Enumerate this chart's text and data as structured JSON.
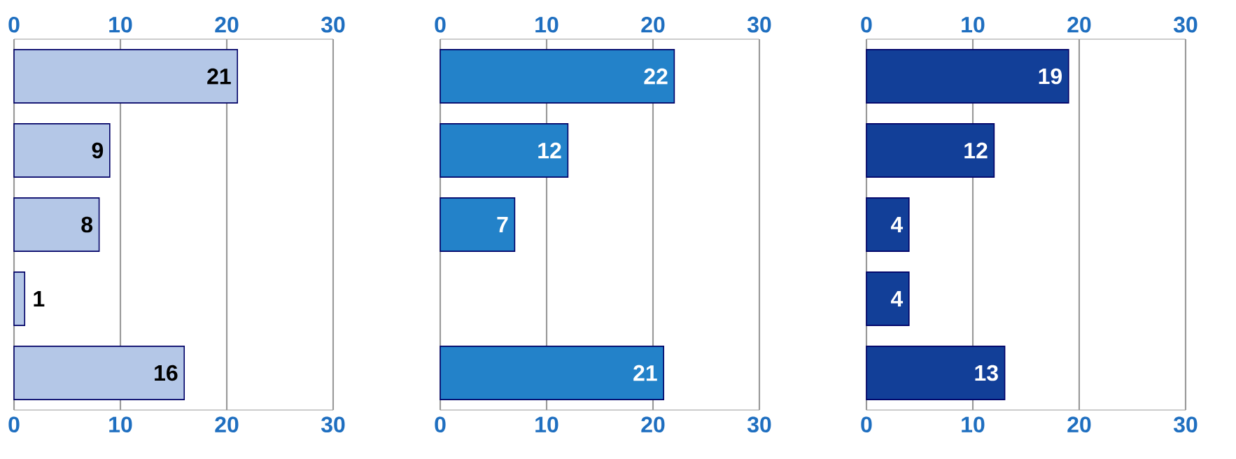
{
  "chart_data": [
    {
      "type": "bar",
      "orientation": "horizontal",
      "categories": [
        null,
        null,
        null,
        null,
        null
      ],
      "values": [
        21,
        9,
        8,
        1,
        16
      ],
      "color": "#b4c7e7",
      "xlim": [
        0,
        30
      ],
      "xticks": [
        0,
        10,
        20,
        30
      ],
      "x2lim": [
        0,
        30
      ],
      "x2ticks": [
        0,
        10,
        20,
        30
      ],
      "grid": "x",
      "data_labels": true
    },
    {
      "type": "bar",
      "orientation": "horizontal",
      "categories": [
        null,
        null,
        null,
        null,
        null
      ],
      "values": [
        22,
        12,
        7,
        null,
        21
      ],
      "color": "#2382c9",
      "xlim": [
        0,
        30
      ],
      "xticks": [
        0,
        10,
        20,
        30
      ],
      "x2lim": [
        0,
        30
      ],
      "x2ticks": [
        0,
        10,
        20,
        30
      ],
      "grid": "x",
      "data_labels": true
    },
    {
      "type": "bar",
      "orientation": "horizontal",
      "categories": [
        null,
        null,
        null,
        null,
        null
      ],
      "values": [
        19,
        12,
        4,
        4,
        13
      ],
      "color": "#123f98",
      "xlim": [
        0,
        30
      ],
      "xticks": [
        0,
        10,
        20,
        30
      ],
      "x2lim": [
        0,
        30
      ],
      "x2ticks": [
        0,
        10,
        20,
        30
      ],
      "grid": "x",
      "data_labels": true
    }
  ]
}
